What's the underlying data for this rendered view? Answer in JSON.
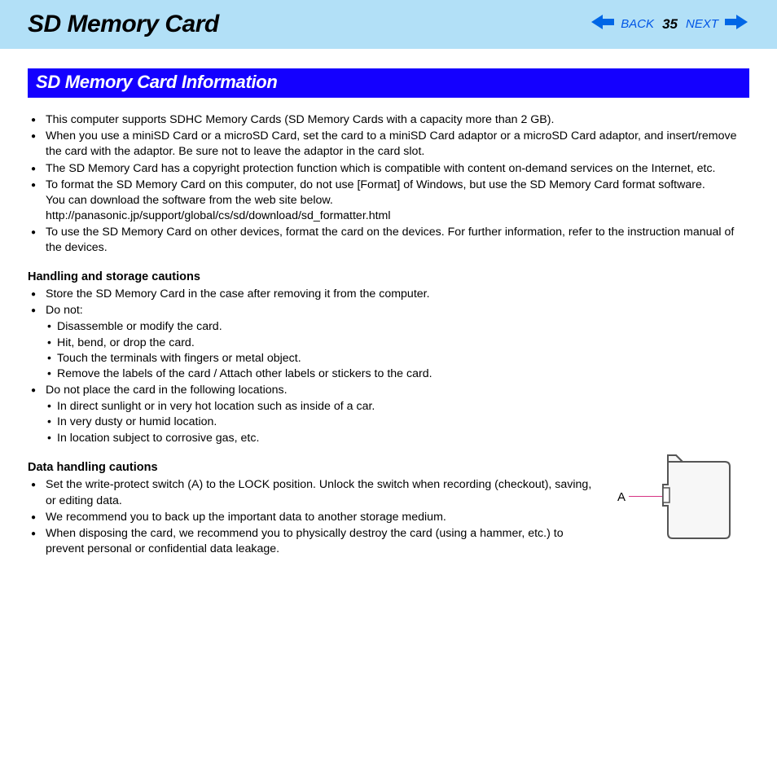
{
  "header": {
    "title": "SD Memory Card",
    "back_label": "BACK",
    "next_label": "NEXT",
    "page_number": "35"
  },
  "section": {
    "title": "SD Memory Card Information"
  },
  "intro_bullets": [
    "This computer supports SDHC Memory Cards (SD Memory Cards with a capacity more than 2 GB).",
    "When you use a miniSD Card or a microSD Card, set the card to a miniSD Card adaptor or a microSD Card adaptor, and insert/remove the card with the adaptor. Be sure not to leave the adaptor in the card slot.",
    "The SD Memory Card has a copyright protection function which is compatible with content on-demand services on the Internet, etc.",
    "To format the SD Memory Card on this computer, do not use [Format] of Windows, but use the SD Memory Card format software.\nYou can download the software from the web site below.\nhttp://panasonic.jp/support/global/cs/sd/download/sd_formatter.html",
    "To use the SD Memory Card on other devices, format the card on the devices. For further information, refer to the instruction manual of the devices."
  ],
  "handling": {
    "heading": "Handling and storage cautions",
    "bullets": [
      {
        "text": "Store the SD Memory Card in the case after removing it from the computer."
      },
      {
        "text": "Do not:",
        "sub": [
          "Disassemble or modify the card.",
          "Hit, bend, or drop the card.",
          "Touch the terminals with fingers or metal object.",
          "Remove the labels of the card / Attach other labels or stickers to the card."
        ]
      },
      {
        "text": "Do not place the card in the following locations.",
        "sub": [
          "In direct sunlight or in very hot location such as inside of a car.",
          "In very dusty or humid location.",
          "In location subject to corrosive gas, etc."
        ]
      }
    ]
  },
  "data_handling": {
    "heading": "Data handling cautions",
    "bullets": [
      "Set the write-protect switch (A) to the LOCK position. Unlock the switch when recording (checkout), saving, or editing data.",
      "We recommend you to back up the important data to another storage medium.",
      "When disposing the card, we recommend you to physically destroy the card (using a hammer, etc.) to prevent personal or confidential data leakage."
    ],
    "figure_label": "A"
  },
  "colors": {
    "header_bg": "#b2e0f7",
    "section_bg": "#1400ff",
    "link": "#0055e6",
    "arrow": "#0066e6",
    "line": "#d63384"
  }
}
